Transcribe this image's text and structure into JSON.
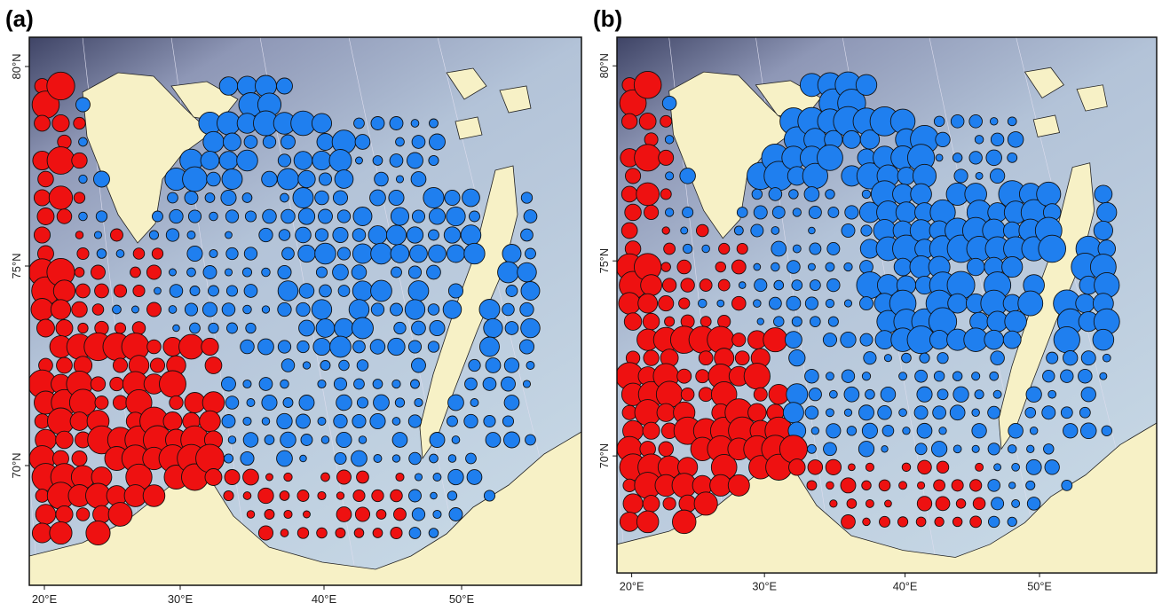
{
  "panels": [
    {
      "label": "(a)",
      "y_labels": [
        "80°N",
        "75°N",
        "70°N"
      ],
      "x_labels": [
        "20°E",
        "30°E",
        "40°E",
        "50°E"
      ]
    },
    {
      "label": "(b)",
      "y_labels": [
        "80°N",
        "75°N",
        "70°N"
      ],
      "x_labels": [
        "20°E",
        "30°E",
        "40°E",
        "50°E"
      ]
    }
  ]
}
